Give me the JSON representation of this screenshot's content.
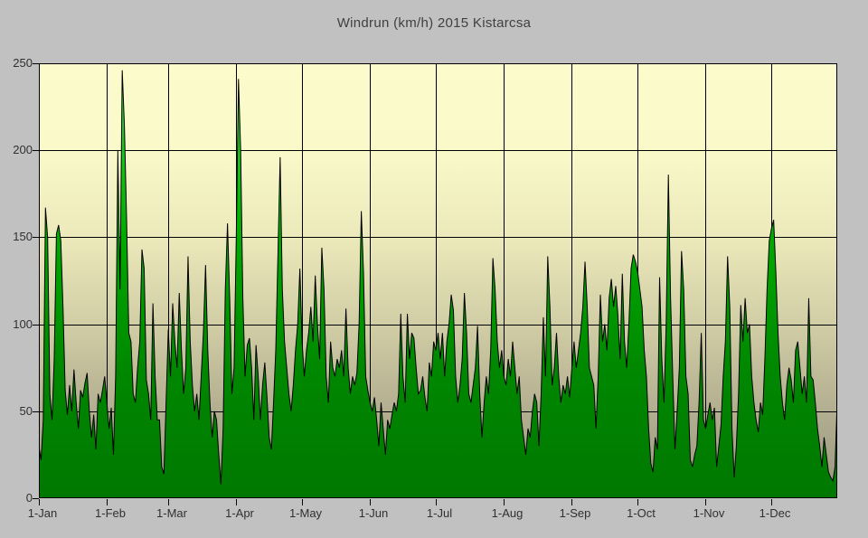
{
  "window": {
    "outer_background": "#c1c1c1"
  },
  "chart_data": {
    "type": "area",
    "title": "Windrun (km/h) 2015 Kistarcsa",
    "series_name": "Windrun",
    "unit": "km/h",
    "xlabel": "",
    "ylabel": "",
    "ylim": [
      0,
      250
    ],
    "grid": true,
    "legend": "none",
    "y_ticks": [
      0,
      50,
      100,
      150,
      200,
      250
    ],
    "x_ticks": [
      {
        "label": "1-Jan",
        "day": 0
      },
      {
        "label": "1-Feb",
        "day": 31
      },
      {
        "label": "1-Mar",
        "day": 59
      },
      {
        "label": "1-Apr",
        "day": 90
      },
      {
        "label": "1-May",
        "day": 120
      },
      {
        "label": "1-Jun",
        "day": 151
      },
      {
        "label": "1-Jul",
        "day": 181
      },
      {
        "label": "1-Aug",
        "day": 212
      },
      {
        "label": "1-Sep",
        "day": 243
      },
      {
        "label": "1-Oct",
        "day": 273
      },
      {
        "label": "1-Nov",
        "day": 304
      },
      {
        "label": "1-Dec",
        "day": 334
      }
    ],
    "values": [
      30,
      22,
      45,
      167,
      150,
      60,
      45,
      80,
      152,
      157,
      148,
      110,
      62,
      48,
      65,
      50,
      74,
      55,
      40,
      62,
      58,
      66,
      72,
      50,
      35,
      48,
      28,
      60,
      55,
      62,
      70,
      55,
      40,
      52,
      25,
      70,
      200,
      120,
      246,
      214,
      160,
      95,
      90,
      60,
      55,
      75,
      90,
      143,
      132,
      68,
      60,
      45,
      112,
      70,
      45,
      45,
      18,
      14,
      55,
      97,
      70,
      112,
      90,
      75,
      118,
      85,
      60,
      75,
      139,
      90,
      65,
      50,
      60,
      45,
      70,
      95,
      134,
      85,
      55,
      35,
      50,
      45,
      25,
      8,
      40,
      120,
      158,
      115,
      60,
      75,
      150,
      241,
      200,
      115,
      70,
      88,
      92,
      75,
      45,
      88,
      70,
      45,
      65,
      78,
      58,
      35,
      28,
      55,
      85,
      140,
      196,
      120,
      90,
      75,
      60,
      50,
      65,
      85,
      100,
      132,
      90,
      70,
      85,
      95,
      110,
      90,
      128,
      100,
      80,
      144,
      120,
      70,
      55,
      90,
      75,
      70,
      80,
      75,
      85,
      70,
      109,
      75,
      60,
      70,
      65,
      72,
      100,
      165,
      130,
      70,
      62,
      55,
      50,
      58,
      45,
      30,
      55,
      40,
      25,
      45,
      40,
      48,
      55,
      50,
      60,
      106,
      70,
      55,
      106,
      80,
      95,
      92,
      75,
      60,
      62,
      70,
      58,
      50,
      78,
      70,
      90,
      85,
      95,
      80,
      95,
      70,
      90,
      100,
      117,
      108,
      70,
      55,
      65,
      80,
      118,
      95,
      60,
      55,
      65,
      75,
      99,
      60,
      35,
      55,
      70,
      60,
      85,
      138,
      120,
      90,
      75,
      85,
      70,
      65,
      80,
      70,
      90,
      75,
      60,
      70,
      45,
      35,
      25,
      40,
      35,
      50,
      60,
      55,
      30,
      60,
      104,
      70,
      139,
      110,
      65,
      75,
      95,
      70,
      55,
      65,
      60,
      70,
      58,
      75,
      90,
      75,
      85,
      95,
      110,
      136,
      110,
      75,
      70,
      65,
      40,
      70,
      117,
      90,
      100,
      85,
      115,
      126,
      110,
      122,
      105,
      80,
      129,
      90,
      75,
      100,
      132,
      140,
      136,
      130,
      120,
      110,
      85,
      70,
      40,
      20,
      15,
      35,
      28,
      127,
      80,
      55,
      100,
      186,
      115,
      70,
      28,
      50,
      75,
      142,
      120,
      70,
      60,
      22,
      18,
      25,
      30,
      55,
      95,
      45,
      40,
      48,
      55,
      45,
      52,
      18,
      30,
      42,
      70,
      90,
      139,
      110,
      40,
      12,
      30,
      60,
      111,
      90,
      115,
      95,
      100,
      70,
      55,
      45,
      38,
      55,
      48,
      80,
      120,
      148,
      155,
      160,
      130,
      95,
      70,
      55,
      45,
      65,
      75,
      68,
      55,
      85,
      90,
      75,
      60,
      70,
      55,
      115,
      70,
      68,
      55,
      40,
      30,
      18,
      35,
      25,
      15,
      12,
      10,
      18,
      57
    ],
    "style": {
      "outer_background": "#c1c1c1",
      "plot_bg_gradient": [
        "#fbfbcb",
        "#f9f9c9",
        "#ece9bb",
        "#d1cda5",
        "#b2ae90",
        "#9a9680"
      ],
      "area_gradient": [
        "#55e055",
        "#22cc22",
        "#00aa00",
        "#008800",
        "#007800"
      ],
      "line_color": "#000000",
      "grid_color": "#000000",
      "text_color": "#303030",
      "title_color": "#404040"
    }
  }
}
